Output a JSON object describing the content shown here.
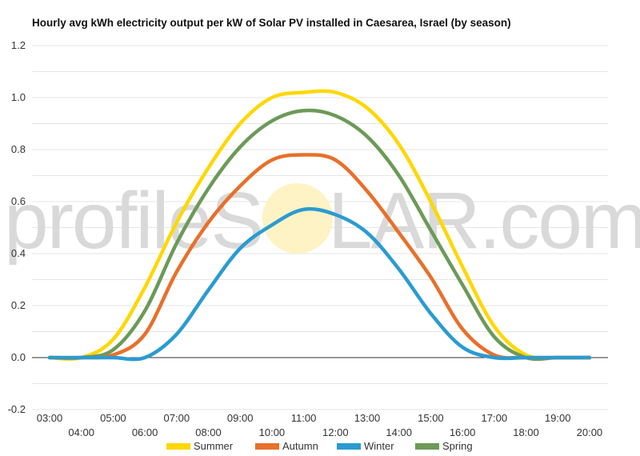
{
  "chart_data": {
    "type": "line",
    "title": "Hourly avg kWh electricity output per kW of Solar PV installed in Caesarea, Israel (by season)",
    "xlabel": "",
    "ylabel": "",
    "x": [
      "03:00",
      "04:00",
      "05:00",
      "06:00",
      "07:00",
      "08:00",
      "09:00",
      "10:00",
      "11:00",
      "12:00",
      "13:00",
      "14:00",
      "15:00",
      "16:00",
      "17:00",
      "18:00",
      "19:00",
      "20:00"
    ],
    "ylim": [
      -0.2,
      1.2
    ],
    "yticks": [
      "-0.2",
      "0.0",
      "0.2",
      "0.4",
      "0.6",
      "0.8",
      "1.0",
      "1.2"
    ],
    "grid": true,
    "legend": "bottom",
    "series": [
      {
        "name": "Summer",
        "color": "#ffd700",
        "values": [
          0.0,
          0.0,
          0.07,
          0.27,
          0.52,
          0.73,
          0.9,
          1.0,
          1.02,
          1.02,
          0.96,
          0.82,
          0.6,
          0.35,
          0.12,
          0.01,
          0.0,
          0.0
        ]
      },
      {
        "name": "Autumn",
        "color": "#e8702a",
        "values": [
          0.0,
          0.0,
          0.01,
          0.09,
          0.33,
          0.52,
          0.66,
          0.76,
          0.78,
          0.76,
          0.64,
          0.48,
          0.31,
          0.11,
          0.01,
          0.0,
          0.0,
          0.0
        ]
      },
      {
        "name": "Winter",
        "color": "#2a9bd1",
        "values": [
          0.0,
          0.0,
          0.0,
          0.0,
          0.09,
          0.26,
          0.42,
          0.51,
          0.57,
          0.55,
          0.48,
          0.34,
          0.17,
          0.04,
          0.0,
          0.0,
          0.0,
          0.0
        ]
      },
      {
        "name": "Spring",
        "color": "#6c9a58",
        "values": [
          0.0,
          0.0,
          0.03,
          0.18,
          0.44,
          0.65,
          0.81,
          0.91,
          0.95,
          0.93,
          0.85,
          0.7,
          0.49,
          0.28,
          0.08,
          0.0,
          0.0,
          0.0
        ]
      }
    ]
  },
  "watermark": {
    "left": "profileS",
    "right": "LAR.com"
  }
}
